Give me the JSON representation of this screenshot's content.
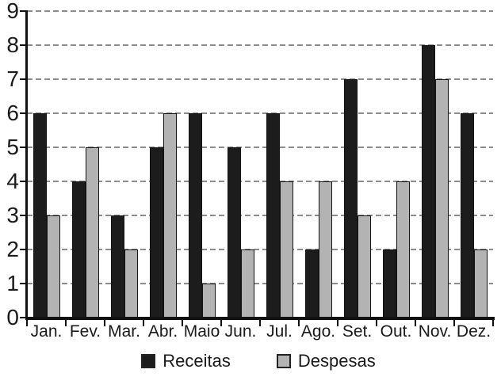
{
  "chart_data": {
    "type": "bar",
    "title": "",
    "xlabel": "",
    "ylabel": "",
    "categories": [
      "Jan.",
      "Fev.",
      "Mar.",
      "Abr.",
      "Maio",
      "Jun.",
      "Jul.",
      "Ago.",
      "Set.",
      "Out.",
      "Nov.",
      "Dez."
    ],
    "series": [
      {
        "name": "Receitas",
        "color": "#1c1c1c",
        "values": [
          6,
          4,
          3,
          5,
          6,
          5,
          6,
          2,
          7,
          2,
          8,
          6
        ]
      },
      {
        "name": "Despesas",
        "color": "#b3b3b3",
        "values": [
          3,
          5,
          2,
          6,
          1,
          2,
          4,
          4,
          3,
          4,
          7,
          2
        ]
      }
    ],
    "ylim": [
      0,
      9
    ],
    "yticks": [
      0,
      1,
      2,
      3,
      4,
      5,
      6,
      7,
      8,
      9
    ],
    "grid": "horizontal-dashed",
    "grid_color": "#8c8c8c",
    "axis_color": "#111111",
    "legend_position": "bottom"
  }
}
